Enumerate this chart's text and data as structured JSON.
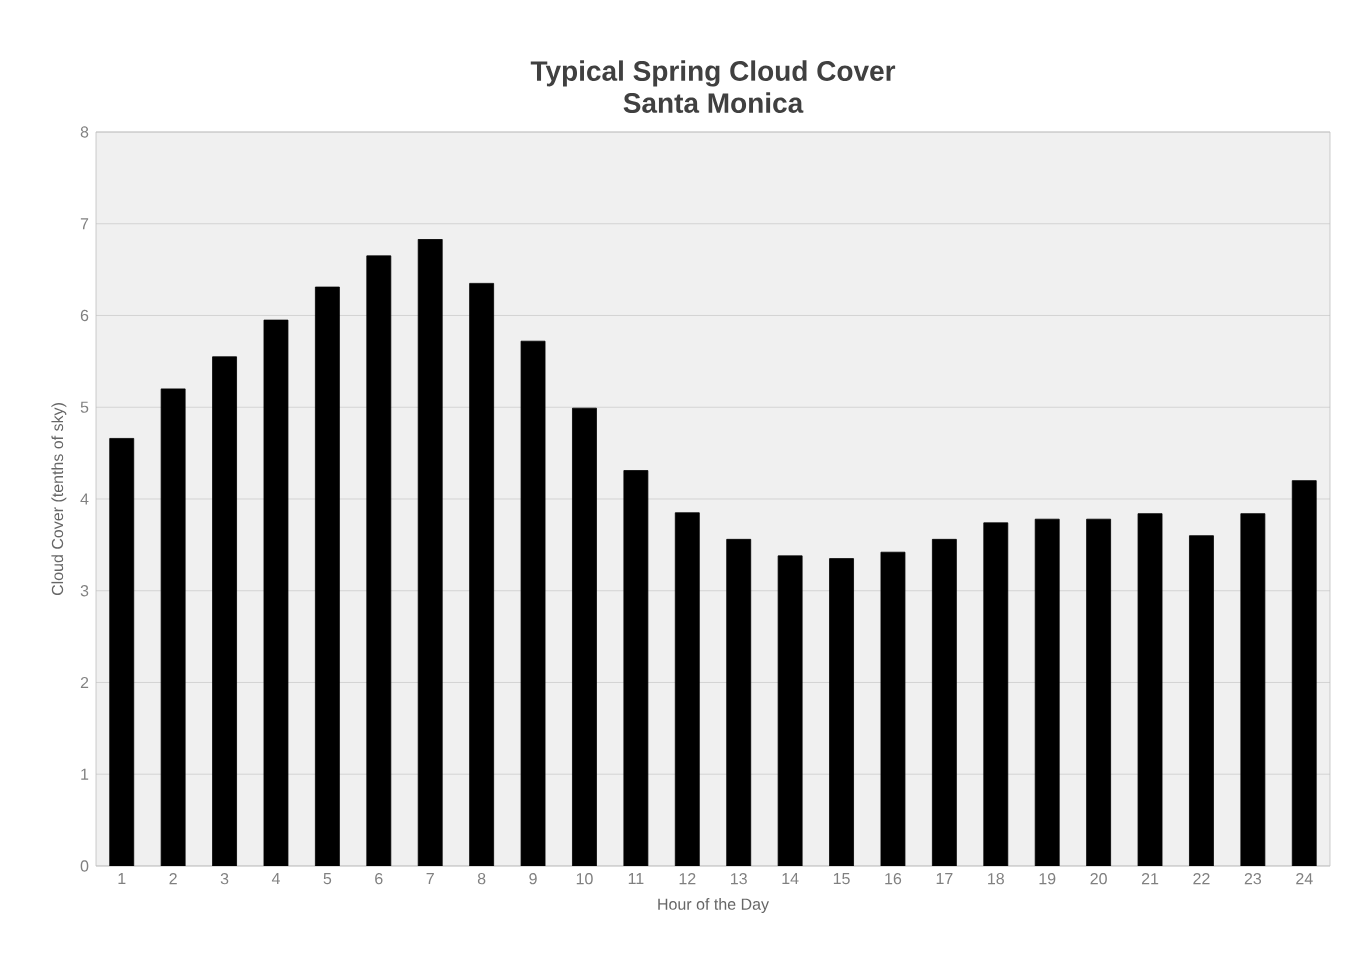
{
  "chart_data": {
    "type": "bar",
    "title": "Typical Spring Cloud Cover",
    "subtitle": "Santa Monica",
    "xlabel": "Hour of the Day",
    "ylabel": "Cloud Cover (tenths of sky)",
    "categories": [
      "1",
      "2",
      "3",
      "4",
      "5",
      "6",
      "7",
      "8",
      "9",
      "10",
      "11",
      "12",
      "13",
      "14",
      "15",
      "16",
      "17",
      "18",
      "19",
      "20",
      "21",
      "22",
      "23",
      "24"
    ],
    "values": [
      4.66,
      5.2,
      5.55,
      5.95,
      6.31,
      6.65,
      6.83,
      6.35,
      5.72,
      4.99,
      4.31,
      3.85,
      3.56,
      3.38,
      3.35,
      3.42,
      3.56,
      3.74,
      3.78,
      3.78,
      3.84,
      3.6,
      3.84,
      4.2
    ],
    "color": "#000000",
    "ylim": [
      0,
      8
    ],
    "yticks": [
      0,
      1,
      2,
      3,
      4,
      5,
      6,
      7,
      8
    ],
    "grid": "y"
  }
}
